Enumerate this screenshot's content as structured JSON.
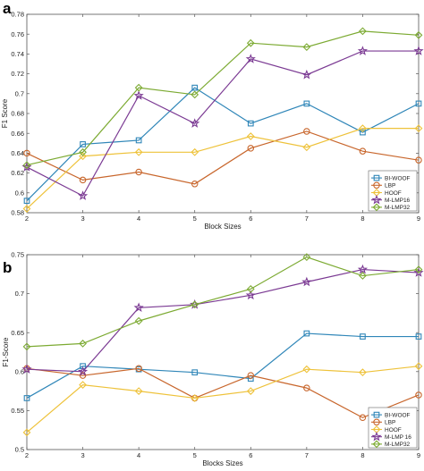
{
  "chart_data": [
    {
      "panel": "a",
      "type": "line",
      "xlabel": "Block Sizes",
      "ylabel": "F1 Score",
      "x": [
        2,
        3,
        4,
        5,
        6,
        7,
        8,
        9
      ],
      "xlim": [
        2,
        9
      ],
      "ylim": [
        0.58,
        0.78
      ],
      "yticks": [
        "0.58",
        "0.6",
        "0.62",
        "0.64",
        "0.66",
        "0.68",
        "0.7",
        "0.72",
        "0.74",
        "0.76",
        "0.78"
      ],
      "grid": false,
      "legend_position": "bottom-right",
      "series": [
        {
          "name": "BI-WOOF",
          "color": "#2f86b8",
          "marker": "square",
          "values": [
            0.592,
            0.649,
            0.653,
            0.706,
            0.67,
            0.69,
            0.661,
            0.69
          ]
        },
        {
          "name": "LBP",
          "color": "#c8662c",
          "marker": "circle",
          "values": [
            0.64,
            0.613,
            0.621,
            0.609,
            0.645,
            0.662,
            0.642,
            0.633
          ]
        },
        {
          "name": "HOOF",
          "color": "#eec23a",
          "marker": "diamond",
          "values": [
            0.584,
            0.637,
            0.641,
            0.641,
            0.657,
            0.646,
            0.665,
            0.665
          ]
        },
        {
          "name": "M-LMP16",
          "color": "#7b3a93",
          "marker": "star",
          "values": [
            0.626,
            0.597,
            0.698,
            0.67,
            0.735,
            0.719,
            0.743,
            0.743
          ]
        },
        {
          "name": "M-LMP32",
          "color": "#7caa32",
          "marker": "diamond",
          "values": [
            0.628,
            0.641,
            0.706,
            0.699,
            0.751,
            0.747,
            0.763,
            0.759
          ]
        }
      ]
    },
    {
      "panel": "b",
      "type": "line",
      "xlabel": "Blocks Sizes",
      "ylabel": "F1-Score",
      "x": [
        2,
        3,
        4,
        5,
        6,
        7,
        8,
        9
      ],
      "xlim": [
        2,
        9
      ],
      "ylim": [
        0.5,
        0.75
      ],
      "yticks": [
        "0.5",
        "0.55",
        "0.6",
        "0.65",
        "0.7",
        "0.75"
      ],
      "grid": false,
      "legend_position": "bottom-right",
      "series": [
        {
          "name": "BI-WOOF",
          "color": "#2f86b8",
          "marker": "square",
          "values": [
            0.566,
            0.607,
            0.603,
            0.599,
            0.591,
            0.649,
            0.645,
            0.645
          ]
        },
        {
          "name": "LBP",
          "color": "#c8662c",
          "marker": "circle",
          "values": [
            0.604,
            0.595,
            0.604,
            0.566,
            0.595,
            0.579,
            0.541,
            0.57
          ]
        },
        {
          "name": "HOOF",
          "color": "#eec23a",
          "marker": "diamond",
          "values": [
            0.522,
            0.583,
            0.575,
            0.566,
            0.575,
            0.603,
            0.599,
            0.607
          ]
        },
        {
          "name": "M-LMP 16",
          "color": "#7b3a93",
          "marker": "star",
          "values": [
            0.603,
            0.6,
            0.682,
            0.686,
            0.698,
            0.715,
            0.731,
            0.727
          ]
        },
        {
          "name": "M-LMP32",
          "color": "#7caa32",
          "marker": "diamond",
          "values": [
            0.632,
            0.636,
            0.665,
            0.686,
            0.706,
            0.747,
            0.723,
            0.731
          ]
        }
      ]
    }
  ]
}
